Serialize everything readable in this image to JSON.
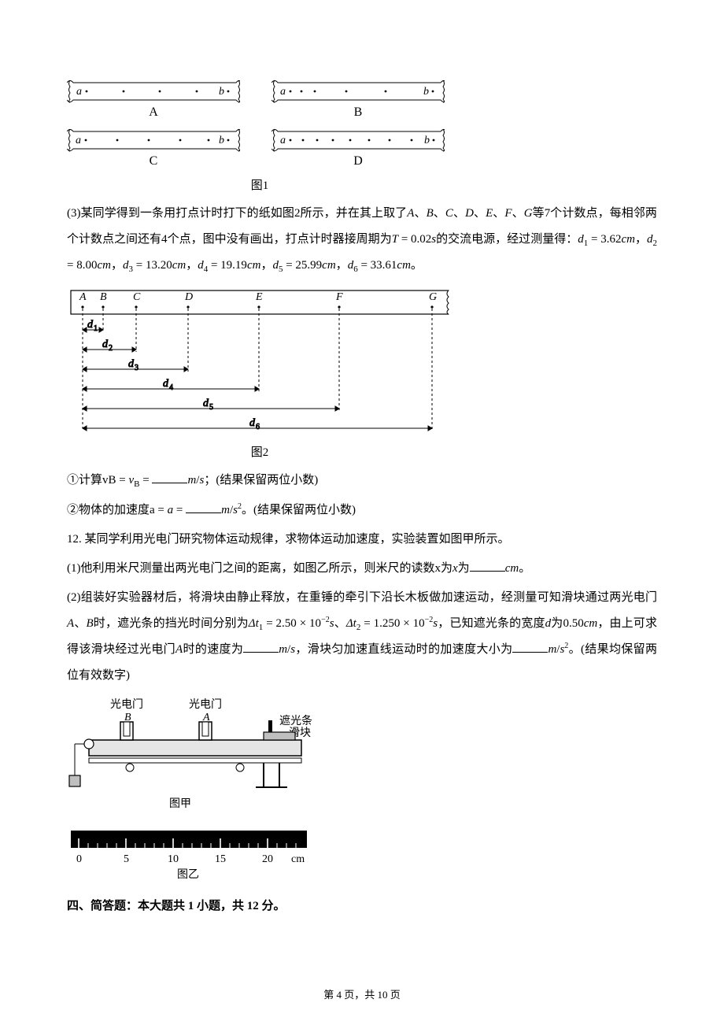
{
  "fig1": {
    "caption": "图1",
    "tapes": [
      {
        "label": "A",
        "left": "a",
        "right": "b",
        "dots": [
          22,
          70,
          118,
          165,
          210
        ],
        "edges": "short"
      },
      {
        "label": "B",
        "left": "a",
        "right": "b",
        "dots": [
          22,
          40,
          60,
          105,
          155,
          212
        ],
        "edges": "short"
      },
      {
        "label": "C",
        "left": "a",
        "right": "b",
        "dots": [
          22,
          65,
          108,
          150,
          190,
          215
        ],
        "edges": "short"
      },
      {
        "label": "D",
        "left": "a",
        "right": "b",
        "dots": [
          22,
          38,
          55,
          75,
          96,
          119,
          145,
          175,
          208
        ],
        "edges": "short"
      }
    ]
  },
  "q3": {
    "intro": "(3)某同学得到一条用打点计时打下的纸如图2所示，并在其上取了A、B、C、D、E、F、G等7个计数点，每相邻两个计数点之间还有4个点，图中没有画出，打点计时器接周期为T = 0.02s的交流电源，经过测量得：d₁ = 3.62cm，d₂ = 8.00cm，d₃ = 13.20cm，d₄ = 19.19cm，d₅ = 25.99cm，d₆ = 33.61cm。",
    "fig2_caption": "图2",
    "part1": "①计算vB = ",
    "part1_unit": "m/s；(结果保留两位小数)",
    "part2": "②物体的加速度a = ",
    "part2_unit": "m/s²。(结果保留两位小数)"
  },
  "q12": {
    "intro": "12. 某同学利用光电门研究物体运动规律，求物体运动加速度，实验装置如图甲所示。",
    "p1a": "(1)他利用米尺测量出两光电门之间的距离，如图乙所示，则米尺的读数x为",
    "p1b": "cm。",
    "p2a": "(2)组装好实验器材后，将滑块由静止释放，在重锤的牵引下沿长木板做加速运动，经测量可知滑块通过两光电门A、B时，遮光条的挡光时间分别为Δt₁ = 2.50 × 10⁻²s、Δt₂ = 1.250 × 10⁻²s，已知遮光条的宽度d为0.50cm，由上可求得该滑块经过光电门A时的速度为",
    "p2b": "m/s，滑块匀加速直线运动时的加速度大小为",
    "p2c": "m/s²。(结果均保留两位有效数字)",
    "labels": {
      "gateB": "光电门",
      "gateB2": "B",
      "gateA": "光电门",
      "gateA2": "A",
      "flag": "遮光条",
      "slider": "滑块",
      "captionA": "图甲",
      "captionB": "图乙",
      "unit": "cm"
    },
    "ruler": {
      "ticks": [
        0,
        5,
        10,
        15,
        20
      ]
    }
  },
  "section4": "四、简答题：本大题共 1 小题，共 12 分。",
  "footer": {
    "a": "第 4 页，",
    "b": "共 10 页"
  }
}
